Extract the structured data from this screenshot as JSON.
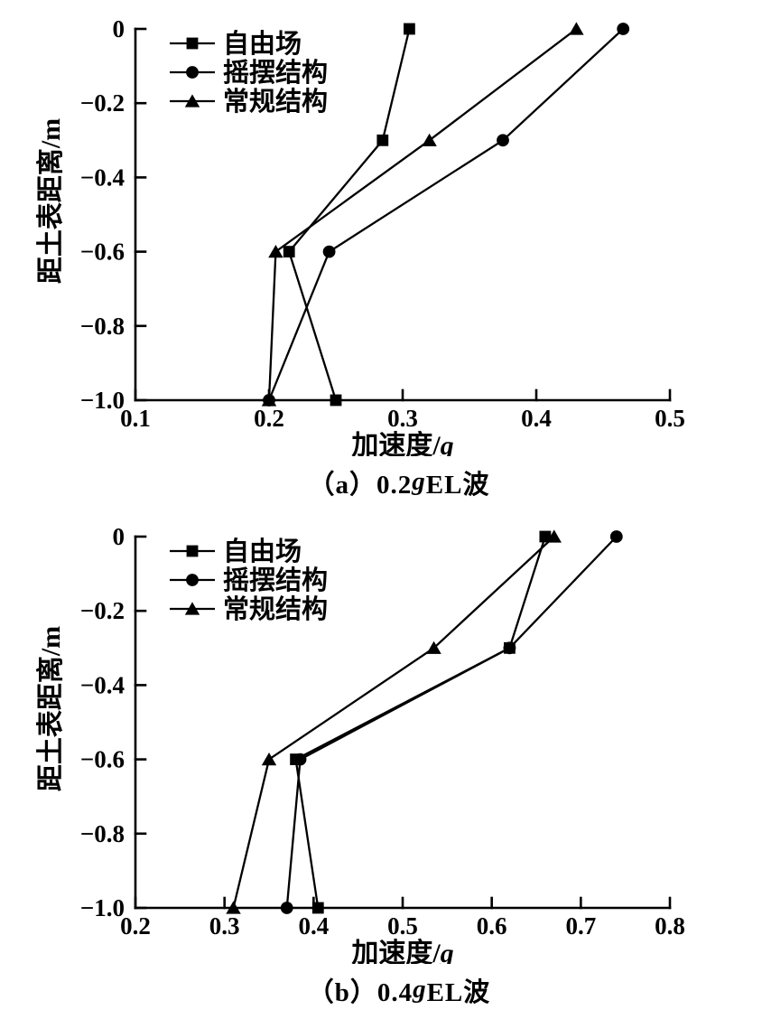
{
  "figure": {
    "background": "#ffffff",
    "ink_color": "#000000"
  },
  "chart_data": [
    {
      "type": "line",
      "title": "",
      "caption": {
        "prefix": "（a）0.2",
        "italic": "g",
        "suffix": " EL波"
      },
      "xlabel": {
        "text": "加速度/",
        "italic": "g"
      },
      "ylabel": "距土表距离/m",
      "xlim": [
        0.1,
        0.5
      ],
      "ylim": [
        -1.0,
        0
      ],
      "grid": false,
      "legend_position": "top-left-inside",
      "x_ticks": {
        "values": [
          0.1,
          0.2,
          0.3,
          0.4,
          0.5
        ],
        "labels": [
          "0.1",
          "0.2",
          "0.3",
          "0.4",
          "0.5"
        ]
      },
      "y_ticks": {
        "values": [
          0,
          -0.2,
          -0.4,
          -0.6,
          -0.8,
          -1.0
        ],
        "labels": [
          "0",
          "−0.2",
          "−0.4",
          "−0.6",
          "−0.8",
          "−1.0"
        ]
      },
      "depths": [
        0,
        -0.3,
        -0.6,
        -1.0
      ],
      "series": [
        {
          "name": "自由场",
          "key": "free-field",
          "marker": "square",
          "values": [
            0.305,
            0.285,
            0.215,
            0.25
          ]
        },
        {
          "name": "摇摆结构",
          "key": "rocking-structure",
          "marker": "circle",
          "values": [
            0.465,
            0.375,
            0.245,
            0.2
          ]
        },
        {
          "name": "常规结构",
          "key": "conventional-structure",
          "marker": "triangle",
          "values": [
            0.43,
            0.32,
            0.205,
            0.2
          ]
        }
      ]
    },
    {
      "type": "line",
      "title": "",
      "caption": {
        "prefix": "（b）0.4",
        "italic": "g",
        "suffix": " EL波"
      },
      "xlabel": {
        "text": "加速度/",
        "italic": "g"
      },
      "ylabel": "距土表距离/m",
      "xlim": [
        0.2,
        0.8
      ],
      "ylim": [
        -1.0,
        0
      ],
      "grid": false,
      "legend_position": "top-left-inside",
      "x_ticks": {
        "values": [
          0.2,
          0.3,
          0.4,
          0.5,
          0.6,
          0.7,
          0.8
        ],
        "labels": [
          "0.2",
          "0.3",
          "0.4",
          "0.5",
          "0.6",
          "0.7",
          "0.8"
        ]
      },
      "y_ticks": {
        "values": [
          0,
          -0.2,
          -0.4,
          -0.6,
          -0.8,
          -1.0
        ],
        "labels": [
          "0",
          "−0.2",
          "−0.4",
          "−0.6",
          "−0.8",
          "−1.0"
        ]
      },
      "depths": [
        0,
        -0.3,
        -0.6,
        -1.0
      ],
      "series": [
        {
          "name": "自由场",
          "key": "free-field",
          "marker": "square",
          "values": [
            0.66,
            0.62,
            0.38,
            0.405
          ]
        },
        {
          "name": "摇摆结构",
          "key": "rocking-structure",
          "marker": "circle",
          "values": [
            0.74,
            0.62,
            0.385,
            0.37
          ]
        },
        {
          "name": "常规结构",
          "key": "conventional-structure",
          "marker": "triangle",
          "values": [
            0.67,
            0.535,
            0.35,
            0.31
          ]
        }
      ]
    }
  ]
}
